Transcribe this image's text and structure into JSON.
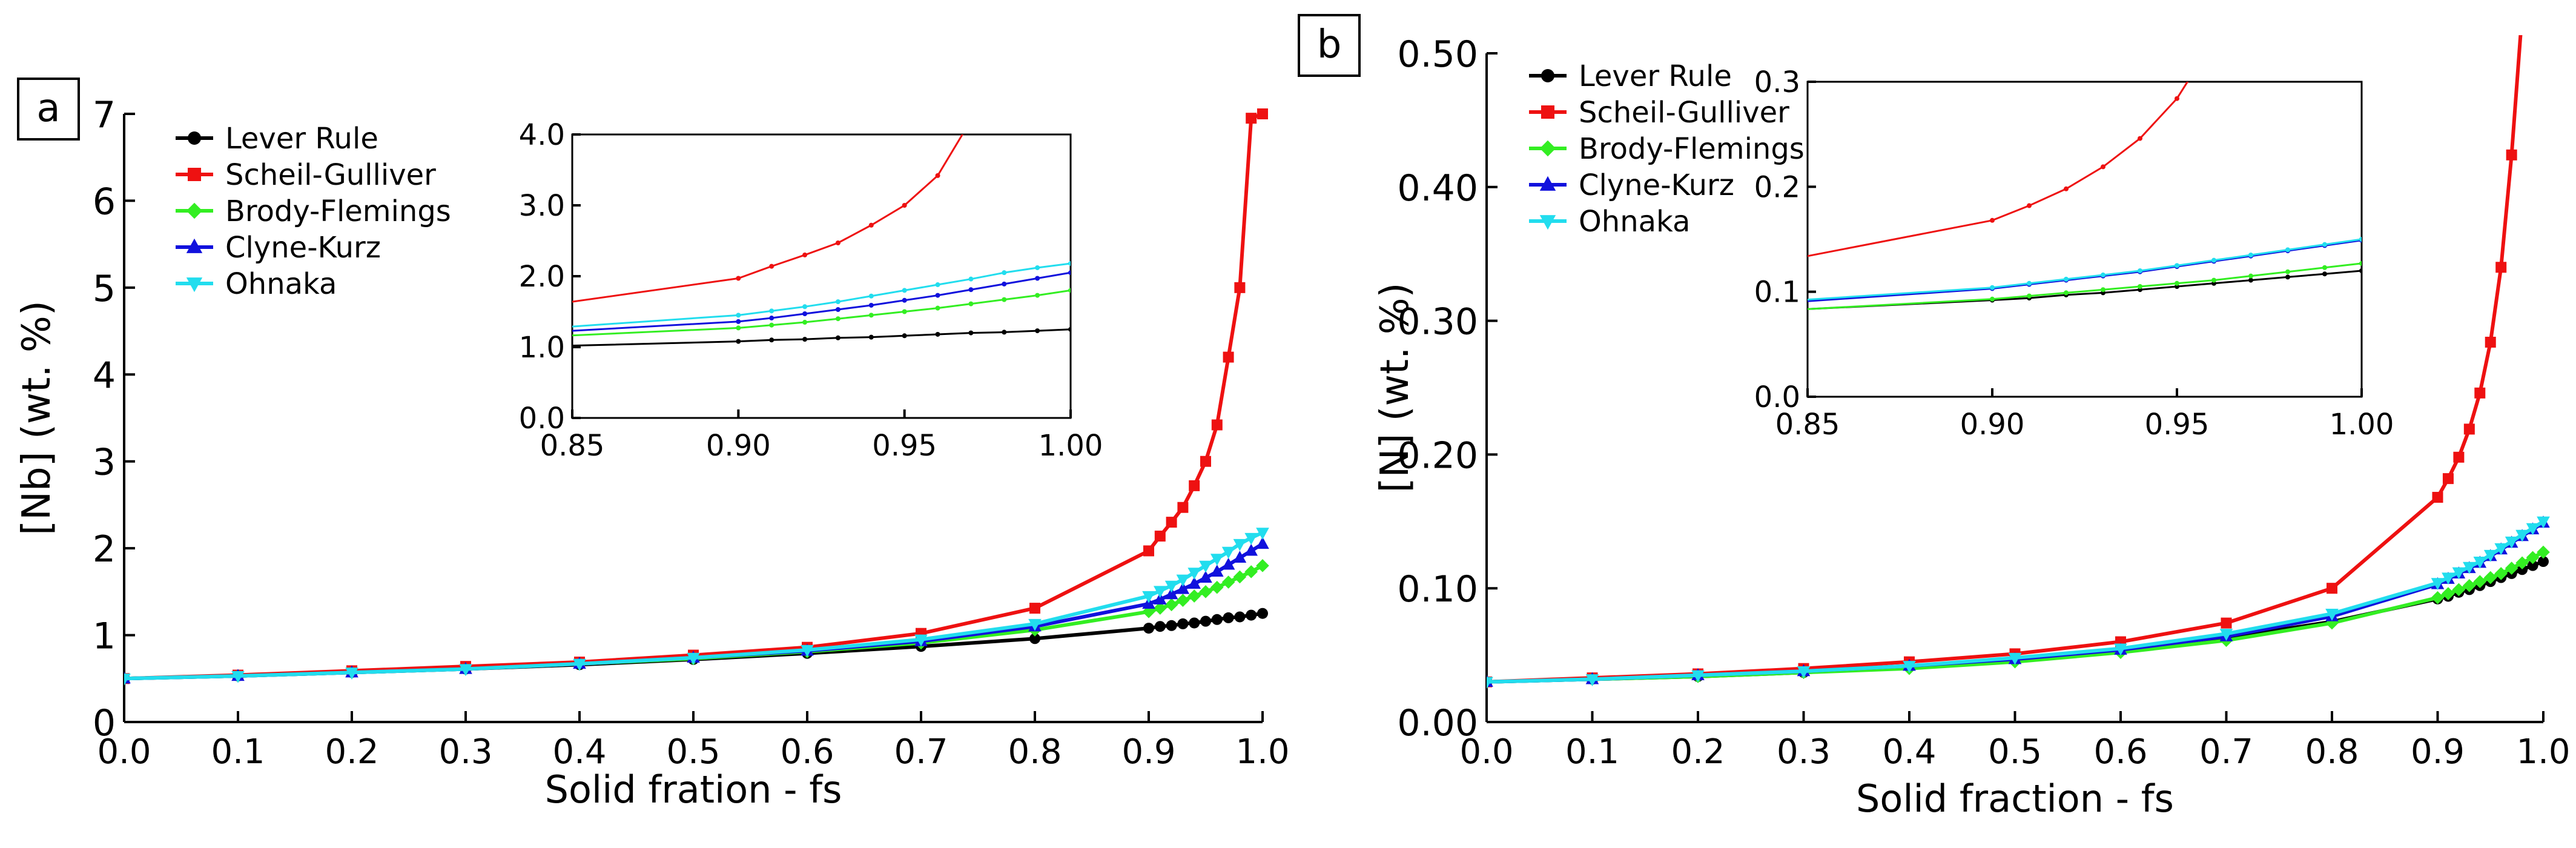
{
  "colors": {
    "lever_rule": "#000000",
    "scheil_gulliver": "#ee1111",
    "brody_flemings": "#33ee22",
    "clyne_kurz": "#1111dd",
    "ohnaka": "#22ddee"
  },
  "chart_data": [
    {
      "type": "line",
      "panel_label": "a",
      "title": "",
      "xlabel": "Solid fration - fs",
      "ylabel": "[Nb] (wt. %)",
      "xlim": [
        0.0,
        1.0
      ],
      "ylim": [
        0,
        7
      ],
      "xticks": [
        "0.0",
        "0.1",
        "0.2",
        "0.3",
        "0.4",
        "0.5",
        "0.6",
        "0.7",
        "0.8",
        "0.9",
        "1.0"
      ],
      "yticks": [
        "0",
        "1",
        "2",
        "3",
        "4",
        "5",
        "6",
        "7"
      ],
      "legend_position": "top-left",
      "x": [
        0,
        0.1,
        0.2,
        0.3,
        0.4,
        0.5,
        0.6,
        0.7,
        0.8,
        0.9,
        0.91,
        0.92,
        0.93,
        0.94,
        0.95,
        0.96,
        0.97,
        0.98,
        0.99,
        1.0
      ],
      "series": [
        {
          "name": "Lever Rule",
          "marker": "circle",
          "color_key": "lever_rule",
          "values": [
            0.5,
            0.53,
            0.57,
            0.61,
            0.66,
            0.72,
            0.79,
            0.87,
            0.96,
            1.08,
            1.1,
            1.11,
            1.13,
            1.14,
            1.16,
            1.18,
            1.2,
            1.21,
            1.23,
            1.25
          ]
        },
        {
          "name": "Scheil-Gulliver",
          "marker": "square",
          "color_key": "scheil_gulliver",
          "values": [
            0.5,
            0.54,
            0.59,
            0.64,
            0.69,
            0.77,
            0.86,
            1.02,
            1.31,
            1.97,
            2.14,
            2.3,
            2.47,
            2.72,
            3.0,
            3.42,
            4.2,
            5.0,
            6.95,
            7.0
          ]
        },
        {
          "name": "Brody-Flemings",
          "marker": "diamond",
          "color_key": "brody_flemings",
          "values": [
            0.5,
            0.53,
            0.57,
            0.61,
            0.67,
            0.73,
            0.81,
            0.91,
            1.06,
            1.27,
            1.31,
            1.35,
            1.4,
            1.45,
            1.5,
            1.55,
            1.61,
            1.67,
            1.73,
            1.8
          ]
        },
        {
          "name": "Clyne-Kurz",
          "marker": "triangle",
          "color_key": "clyne_kurz",
          "values": [
            0.5,
            0.53,
            0.57,
            0.61,
            0.67,
            0.74,
            0.82,
            0.93,
            1.1,
            1.36,
            1.41,
            1.47,
            1.53,
            1.59,
            1.66,
            1.73,
            1.81,
            1.89,
            1.97,
            2.05
          ]
        },
        {
          "name": "Ohnaka",
          "marker": "triangle-down",
          "color_key": "ohnaka",
          "values": [
            0.5,
            0.53,
            0.57,
            0.61,
            0.67,
            0.74,
            0.83,
            0.95,
            1.13,
            1.45,
            1.51,
            1.57,
            1.64,
            1.72,
            1.8,
            1.88,
            1.96,
            2.05,
            2.12,
            2.18
          ]
        }
      ],
      "inset": {
        "xlim": [
          0.85,
          1.0
        ],
        "ylim": [
          0,
          4
        ],
        "xticks": [
          "0.85",
          "0.90",
          "0.95",
          "1.00"
        ],
        "yticks": [
          "0.0",
          "1.0",
          "2.0",
          "3.0",
          "4.0"
        ]
      }
    },
    {
      "type": "line",
      "panel_label": "b",
      "title": "",
      "xlabel": "Solid fraction - fs",
      "ylabel": "[N] (wt. %)",
      "xlim": [
        0.0,
        1.0
      ],
      "ylim": [
        0,
        0.5
      ],
      "xticks": [
        "0.0",
        "0.1",
        "0.2",
        "0.3",
        "0.4",
        "0.5",
        "0.6",
        "0.7",
        "0.8",
        "0.9",
        "1.0"
      ],
      "yticks": [
        "0.00",
        "0.10",
        "0.20",
        "0.30",
        "0.40",
        "0.50"
      ],
      "legend_position": "top-left",
      "x": [
        0,
        0.1,
        0.2,
        0.3,
        0.4,
        0.5,
        0.6,
        0.7,
        0.8,
        0.9,
        0.91,
        0.92,
        0.93,
        0.94,
        0.95,
        0.96,
        0.97,
        0.98,
        0.99,
        1.0
      ],
      "series": [
        {
          "name": "Lever Rule",
          "marker": "circle",
          "color_key": "lever_rule",
          "values": [
            0.03,
            0.032,
            0.034,
            0.037,
            0.041,
            0.046,
            0.054,
            0.063,
            0.075,
            0.092,
            0.094,
            0.097,
            0.099,
            0.102,
            0.105,
            0.108,
            0.111,
            0.114,
            0.117,
            0.12
          ]
        },
        {
          "name": "Scheil-Gulliver",
          "marker": "square",
          "color_key": "scheil_gulliver",
          "values": [
            0.03,
            0.033,
            0.036,
            0.04,
            0.045,
            0.051,
            0.06,
            0.074,
            0.1,
            0.168,
            0.182,
            0.198,
            0.219,
            0.246,
            0.284,
            0.34,
            0.424,
            0.53,
            0.53,
            0.53
          ]
        },
        {
          "name": "Brody-Flemings",
          "marker": "diamond",
          "color_key": "brody_flemings",
          "values": [
            0.03,
            0.032,
            0.034,
            0.037,
            0.04,
            0.045,
            0.052,
            0.061,
            0.074,
            0.093,
            0.096,
            0.099,
            0.102,
            0.105,
            0.108,
            0.111,
            0.115,
            0.119,
            0.123,
            0.127
          ]
        },
        {
          "name": "Clyne-Kurz",
          "marker": "triangle",
          "color_key": "clyne_kurz",
          "values": [
            0.03,
            0.032,
            0.035,
            0.038,
            0.042,
            0.047,
            0.054,
            0.064,
            0.079,
            0.103,
            0.107,
            0.111,
            0.115,
            0.119,
            0.124,
            0.129,
            0.134,
            0.139,
            0.144,
            0.149
          ]
        },
        {
          "name": "Ohnaka",
          "marker": "triangle-down",
          "color_key": "ohnaka",
          "values": [
            0.03,
            0.032,
            0.035,
            0.038,
            0.042,
            0.048,
            0.055,
            0.066,
            0.081,
            0.104,
            0.108,
            0.112,
            0.116,
            0.12,
            0.125,
            0.13,
            0.135,
            0.14,
            0.145,
            0.15
          ]
        }
      ],
      "inset": {
        "xlim": [
          0.85,
          1.0
        ],
        "ylim": [
          0,
          0.3
        ],
        "xticks": [
          "0.85",
          "0.90",
          "0.95",
          "1.00"
        ],
        "yticks": [
          "0.0",
          "0.1",
          "0.2",
          "0.3"
        ]
      }
    }
  ]
}
